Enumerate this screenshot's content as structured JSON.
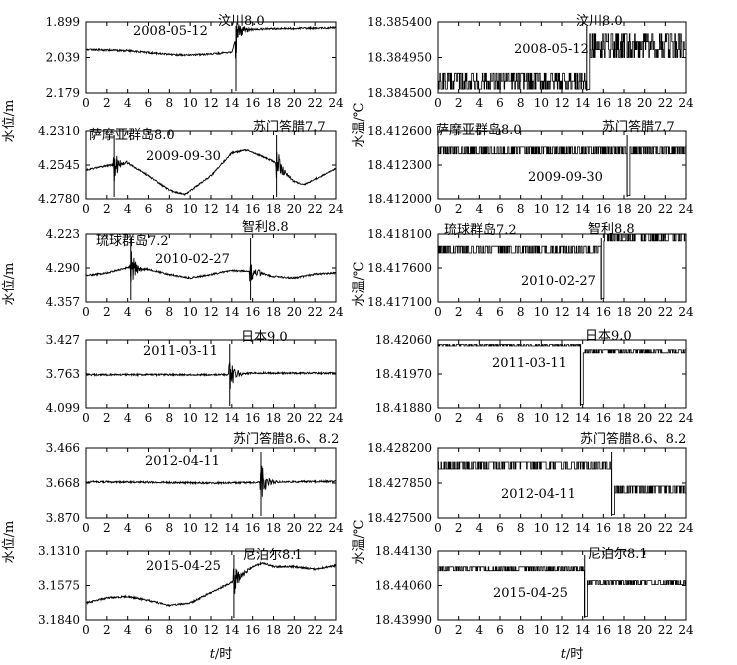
{
  "chart_data": {
    "type": "line",
    "x_axis": {
      "ticks": [
        "0",
        "2",
        "4",
        "6",
        "8",
        "10",
        "12",
        "14",
        "16",
        "18",
        "20",
        "22",
        "24"
      ],
      "label_italic": "t",
      "label_rest": "/时",
      "xlim": [
        0,
        24
      ]
    },
    "y_axis_labels": {
      "water_level": "水位/m",
      "water_temp": "水温/℃"
    },
    "events": [
      {
        "date": "2008-05-12",
        "quake": "汶川8.0",
        "time_h": 14.4
      },
      {
        "date": "2009-09-30",
        "quake_1": "萨摩亚群岛8.0",
        "time_1_h": 2.7,
        "quake_2": "苏门答腊7.7",
        "time_2_h": 18.3
      },
      {
        "date": "2010-02-27",
        "quake_1": "琉球群岛7.2",
        "time_1_h": 4.3,
        "quake_2": "智利8.8",
        "time_2_h": 15.8
      },
      {
        "date": "2011-03-11",
        "quake": "日本9.0",
        "time_h": 13.8
      },
      {
        "date": "2012-04-11",
        "quake": "苏门答腊8.6、8.2",
        "time_h": 16.8
      },
      {
        "date": "2015-04-25",
        "quake": "尼泊尔8.1",
        "time_h": 14.2
      }
    ],
    "left_panels": [
      {
        "quantity": "水位",
        "unit": "m",
        "y_ticks": [
          "1.899",
          "2.039",
          "2.179"
        ],
        "y_range": [
          1.899,
          2.179
        ],
        "inverted": true,
        "baseline": [
          [
            0,
            2.007
          ],
          [
            4,
            2.012
          ],
          [
            8,
            2.027
          ],
          [
            10,
            2.03
          ],
          [
            12,
            2.025
          ],
          [
            14,
            2.019
          ],
          [
            14.4,
            1.96
          ],
          [
            15,
            1.93
          ],
          [
            18,
            1.925
          ],
          [
            22,
            1.923
          ],
          [
            24,
            1.921
          ]
        ]
      },
      {
        "quantity": "水位",
        "unit": "m",
        "y_ticks": [
          "4.2310",
          "4.2545",
          "4.2780"
        ],
        "y_range": [
          4.231,
          4.278
        ],
        "inverted": true,
        "baseline": [
          [
            0,
            4.258
          ],
          [
            2,
            4.255
          ],
          [
            4,
            4.253
          ],
          [
            6,
            4.262
          ],
          [
            8,
            4.272
          ],
          [
            9.5,
            4.275
          ],
          [
            12,
            4.262
          ],
          [
            14,
            4.246
          ],
          [
            15.5,
            4.244
          ],
          [
            18,
            4.252
          ],
          [
            20,
            4.266
          ],
          [
            21,
            4.268
          ],
          [
            24,
            4.257
          ]
        ]
      },
      {
        "quantity": "水位",
        "unit": "m",
        "y_ticks": [
          "4.223",
          "4.290",
          "4.357"
        ],
        "y_range": [
          4.223,
          4.357
        ],
        "inverted": true,
        "baseline": [
          [
            0,
            4.305
          ],
          [
            2,
            4.3
          ],
          [
            4,
            4.289
          ],
          [
            6,
            4.293
          ],
          [
            8,
            4.303
          ],
          [
            10,
            4.31
          ],
          [
            12,
            4.303
          ],
          [
            14,
            4.295
          ],
          [
            16,
            4.297
          ],
          [
            18,
            4.307
          ],
          [
            20,
            4.31
          ],
          [
            22,
            4.302
          ],
          [
            24,
            4.3
          ]
        ]
      },
      {
        "quantity": "水位",
        "unit": "m",
        "y_ticks": [
          "3.427",
          "3.763",
          "4.099"
        ],
        "y_range": [
          3.427,
          4.099
        ],
        "inverted": true,
        "baseline": [
          [
            0,
            3.77
          ],
          [
            13.8,
            3.77
          ],
          [
            16,
            3.753
          ],
          [
            24,
            3.755
          ]
        ]
      },
      {
        "quantity": "水位",
        "unit": "m",
        "y_ticks": [
          "3.466",
          "3.668",
          "3.870"
        ],
        "y_range": [
          3.466,
          3.87
        ],
        "inverted": true,
        "baseline": [
          [
            0,
            3.66
          ],
          [
            6,
            3.663
          ],
          [
            12,
            3.668
          ],
          [
            16,
            3.665
          ],
          [
            20,
            3.66
          ],
          [
            24,
            3.658
          ]
        ]
      },
      {
        "quantity": "水位",
        "unit": "m",
        "y_ticks": [
          "3.1310",
          "3.1575",
          "3.1840"
        ],
        "y_range": [
          3.131,
          3.184
        ],
        "inverted": true,
        "baseline": [
          [
            0,
            3.171
          ],
          [
            2,
            3.167
          ],
          [
            4,
            3.166
          ],
          [
            6,
            3.169
          ],
          [
            8,
            3.173
          ],
          [
            10,
            3.171
          ],
          [
            12,
            3.163
          ],
          [
            14,
            3.155
          ],
          [
            16,
            3.143
          ],
          [
            17,
            3.14
          ],
          [
            18,
            3.143
          ],
          [
            20,
            3.143
          ],
          [
            22,
            3.145
          ],
          [
            24,
            3.142
          ]
        ]
      }
    ],
    "right_panels": [
      {
        "quantity": "水温",
        "unit": "℃",
        "y_ticks": [
          "18.385400",
          "18.384950",
          "18.384500"
        ],
        "y_range": [
          18.3845,
          18.3854
        ],
        "inverted": false,
        "levels": [
          18.38455,
          18.38465,
          18.38475
        ],
        "level_after": [
          18.38525,
          18.38515,
          18.38505,
          18.38495
        ]
      },
      {
        "quantity": "水温",
        "unit": "℃",
        "y_ticks": [
          "18.412600",
          "18.412300",
          "18.412000"
        ],
        "y_range": [
          18.412,
          18.4126
        ],
        "inverted": false,
        "levels": [
          18.41246,
          18.4124
        ],
        "level_after": [
          18.41246,
          18.4124
        ]
      },
      {
        "quantity": "水温",
        "unit": "℃",
        "y_ticks": [
          "18.418100",
          "18.417600",
          "18.417100"
        ],
        "y_range": [
          18.4171,
          18.4181
        ],
        "inverted": false,
        "levels": [
          18.41792,
          18.41782
        ],
        "level_after": [
          18.4181,
          18.418
        ]
      },
      {
        "quantity": "水温",
        "unit": "℃",
        "y_ticks": [
          "18.42060",
          "18.41970",
          "18.41880"
        ],
        "y_range": [
          18.4188,
          18.4206
        ],
        "inverted": false,
        "levels": [
          18.42048,
          18.42044
        ],
        "level_after": [
          18.42034,
          18.42026
        ]
      },
      {
        "quantity": "水温",
        "unit": "℃",
        "y_ticks": [
          "18.428200",
          "18.427850",
          "18.427500"
        ],
        "y_range": [
          18.4275,
          18.4282
        ],
        "inverted": false,
        "levels": [
          18.42806,
          18.42799
        ],
        "level_after": [
          18.42782,
          18.42775
        ]
      },
      {
        "quantity": "水温",
        "unit": "℃",
        "y_ticks": [
          "18.44130",
          "18.44060",
          "18.43990"
        ],
        "y_range": [
          18.4399,
          18.4413
        ],
        "inverted": false,
        "levels": [
          18.44098,
          18.4409
        ],
        "level_after": [
          18.4407,
          18.44062
        ]
      }
    ]
  }
}
